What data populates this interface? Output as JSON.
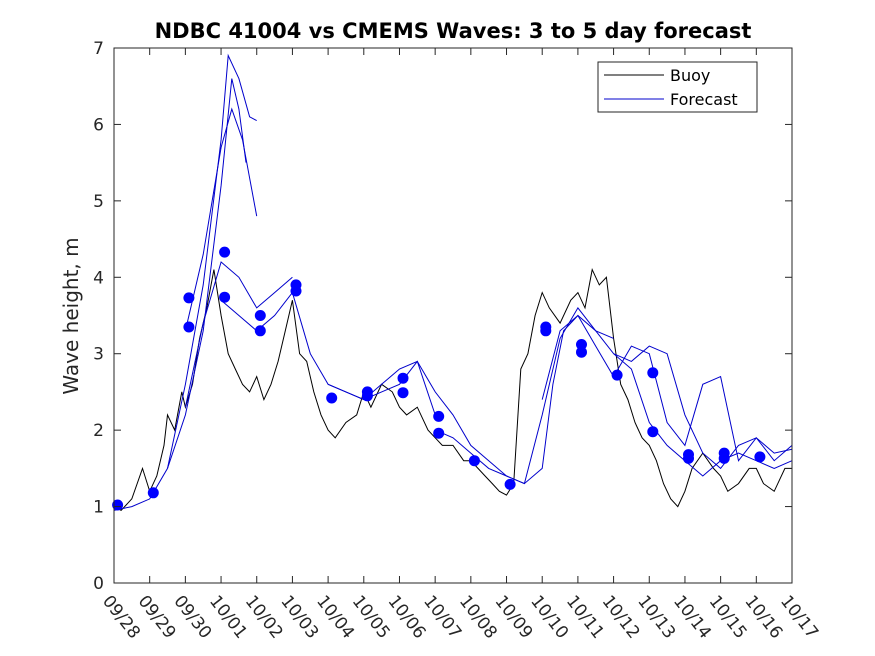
{
  "chart_data": {
    "type": "line",
    "title": "NDBC 41004 vs CMEMS Waves: 3 to 5 day forecast",
    "xlabel": "",
    "ylabel": "Wave height, m",
    "xlim": [
      0,
      19
    ],
    "ylim": [
      0,
      7
    ],
    "yticks": [
      0,
      1,
      2,
      3,
      4,
      5,
      6,
      7
    ],
    "xtick_labels": [
      "09/28",
      "09/29",
      "09/30",
      "10/01",
      "10/02",
      "10/03",
      "10/04",
      "10/05",
      "10/06",
      "10/07",
      "10/08",
      "10/09",
      "10/10",
      "10/11",
      "10/12",
      "10/13",
      "10/14",
      "10/15",
      "10/16",
      "10/17"
    ],
    "grid": false,
    "legend": {
      "location": "top-right",
      "entries": [
        "Buoy",
        "Forecast"
      ]
    },
    "colors": {
      "buoy": "#000000",
      "forecast": "#0000cc",
      "marker": "#0000ff",
      "axis": "#262626"
    },
    "series": [
      {
        "name": "Buoy",
        "x": [
          0,
          0.2,
          0.5,
          0.8,
          1.0,
          1.2,
          1.4,
          1.5,
          1.7,
          1.9,
          2.0,
          2.2,
          2.4,
          2.6,
          2.8,
          3.0,
          3.2,
          3.4,
          3.6,
          3.8,
          4.0,
          4.2,
          4.4,
          4.6,
          4.8,
          5.0,
          5.2,
          5.4,
          5.6,
          5.8,
          6.0,
          6.2,
          6.5,
          6.8,
          7.0,
          7.2,
          7.5,
          7.8,
          8.0,
          8.2,
          8.5,
          8.8,
          9.0,
          9.2,
          9.5,
          9.8,
          10.0,
          10.2,
          10.4,
          10.6,
          10.8,
          11.0,
          11.2,
          11.4,
          11.6,
          11.8,
          12.0,
          12.2,
          12.5,
          12.8,
          13.0,
          13.2,
          13.4,
          13.6,
          13.8,
          14.0,
          14.2,
          14.4,
          14.6,
          14.8,
          15.0,
          15.2,
          15.4,
          15.6,
          15.8,
          16.0,
          16.2,
          16.5,
          16.8,
          17.0,
          17.2,
          17.5,
          17.8,
          18.0,
          18.2,
          18.5,
          18.8,
          19.0
        ],
        "values": [
          1.0,
          0.95,
          1.1,
          1.5,
          1.2,
          1.4,
          1.8,
          2.2,
          2.0,
          2.5,
          2.3,
          2.6,
          3.2,
          3.6,
          4.1,
          3.5,
          3.0,
          2.8,
          2.6,
          2.5,
          2.7,
          2.4,
          2.6,
          2.9,
          3.3,
          3.7,
          3.0,
          2.9,
          2.5,
          2.2,
          2.0,
          1.9,
          2.1,
          2.2,
          2.5,
          2.3,
          2.6,
          2.5,
          2.3,
          2.2,
          2.3,
          2.0,
          1.9,
          1.8,
          1.8,
          1.6,
          1.6,
          1.5,
          1.4,
          1.3,
          1.2,
          1.15,
          1.3,
          2.8,
          3.0,
          3.5,
          3.8,
          3.6,
          3.4,
          3.7,
          3.8,
          3.6,
          4.1,
          3.9,
          4.0,
          3.2,
          2.6,
          2.4,
          2.1,
          1.9,
          1.8,
          1.6,
          1.3,
          1.1,
          1.0,
          1.2,
          1.5,
          1.7,
          1.5,
          1.4,
          1.2,
          1.3,
          1.5,
          1.5,
          1.3,
          1.2,
          1.5,
          1.5
        ]
      },
      {
        "name": "Forecast",
        "x": [
          0,
          0.5,
          1.0,
          1.5,
          2.0,
          2.5,
          3.0,
          3.3,
          3.5,
          3.7
        ],
        "values": [
          0.95,
          1.0,
          1.1,
          1.5,
          2.2,
          3.3,
          5.2,
          6.6,
          6.2,
          5.5
        ]
      },
      {
        "name": "Forecast",
        "x": [
          1.5,
          2.0,
          2.5,
          3.0,
          3.2,
          3.5,
          3.8,
          4.0
        ],
        "values": [
          1.5,
          2.6,
          3.9,
          5.8,
          6.9,
          6.6,
          6.1,
          6.05
        ]
      },
      {
        "name": "Forecast",
        "x": [
          2.0,
          2.5,
          3.0,
          3.3,
          3.6,
          4.0
        ],
        "values": [
          3.3,
          4.3,
          5.7,
          6.2,
          5.8,
          4.8
        ]
      },
      {
        "name": "Forecast",
        "x": [
          2.0,
          2.5,
          3.0,
          3.5,
          4.0,
          4.5,
          5.0
        ],
        "values": [
          2.3,
          3.4,
          4.2,
          4.0,
          3.6,
          3.8,
          4.0
        ]
      },
      {
        "name": "Forecast",
        "x": [
          3.0,
          3.5,
          4.0,
          4.5,
          5.0,
          5.5,
          6.0,
          6.5,
          7.0,
          7.5,
          8.0,
          8.5,
          9.0
        ],
        "values": [
          3.7,
          3.5,
          3.3,
          3.5,
          3.8,
          3.0,
          2.6,
          2.5,
          2.4,
          2.6,
          2.8,
          2.9,
          2.2
        ]
      },
      {
        "name": "Forecast",
        "x": [
          6.0,
          6.5,
          7.0,
          7.5,
          8.0,
          8.5,
          9.0,
          9.5,
          10.0,
          10.5,
          11.0,
          11.5,
          12.0,
          12.3,
          12.6,
          13.0,
          13.5,
          14.0
        ],
        "values": [
          2.6,
          2.5,
          2.4,
          2.5,
          2.6,
          2.9,
          2.5,
          2.2,
          1.8,
          1.6,
          1.4,
          1.3,
          1.5,
          2.6,
          3.3,
          3.5,
          3.3,
          3.2
        ]
      },
      {
        "name": "Forecast",
        "x": [
          9.0,
          9.5,
          10.0,
          10.5,
          11.0,
          11.5,
          12.0,
          12.5,
          13.0,
          13.5,
          14.0,
          14.5,
          15.0,
          15.5,
          16.0,
          16.5,
          17.0,
          17.5,
          18.0,
          18.5,
          19.0
        ],
        "values": [
          2.0,
          1.9,
          1.7,
          1.5,
          1.4,
          1.3,
          2.2,
          3.2,
          3.6,
          3.3,
          3.0,
          2.8,
          2.1,
          1.8,
          1.6,
          1.4,
          1.6,
          1.7,
          1.6,
          1.5,
          1.6
        ]
      },
      {
        "name": "Forecast",
        "x": [
          12.0,
          12.5,
          13.0,
          13.5,
          14.0,
          14.5,
          15.0,
          15.5,
          16.0,
          16.5,
          17.0,
          17.5,
          18.0,
          18.5,
          19.0
        ],
        "values": [
          2.4,
          3.3,
          3.5,
          3.1,
          2.7,
          3.1,
          3.0,
          2.1,
          1.8,
          2.6,
          2.7,
          1.6,
          1.9,
          1.7,
          1.75
        ]
      },
      {
        "name": "Forecast",
        "x": [
          14.0,
          14.5,
          15.0,
          15.5,
          16.0,
          16.5,
          17.0,
          17.5,
          18.0,
          18.5,
          19.0
        ],
        "values": [
          3.0,
          2.9,
          3.1,
          3.0,
          2.2,
          1.7,
          1.5,
          1.8,
          1.9,
          1.6,
          1.8
        ]
      }
    ],
    "markers": {
      "name": "Forecast points",
      "x": [
        0.1,
        1.1,
        2.1,
        2.1,
        3.1,
        3.1,
        4.1,
        4.1,
        5.1,
        5.1,
        6.1,
        7.1,
        7.1,
        8.1,
        8.1,
        9.1,
        9.1,
        10.1,
        11.1,
        12.1,
        12.1,
        13.1,
        13.1,
        14.1,
        15.1,
        15.1,
        16.1,
        16.1,
        17.1,
        17.1,
        18.1
      ],
      "values": [
        1.02,
        1.18,
        3.35,
        3.73,
        4.33,
        3.74,
        3.3,
        3.5,
        3.82,
        3.9,
        2.42,
        2.5,
        2.45,
        2.49,
        2.68,
        2.18,
        1.96,
        1.6,
        1.29,
        3.35,
        3.3,
        3.02,
        3.12,
        2.72,
        1.98,
        2.75,
        1.68,
        1.63,
        1.63,
        1.7,
        1.65
      ]
    }
  }
}
